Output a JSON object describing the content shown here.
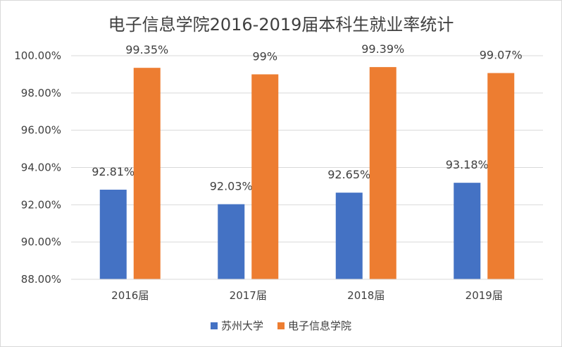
{
  "chart_data": {
    "type": "bar",
    "title": "电子信息学院2016-2019届本科生就业率统计",
    "categories": [
      "2016届",
      "2017届",
      "2018届",
      "2019届"
    ],
    "series": [
      {
        "name": "苏州大学",
        "values": [
          92.81,
          92.03,
          92.65,
          93.18
        ],
        "labels": [
          "92.81%",
          "92.03%",
          "92.65%",
          "93.18%"
        ],
        "color": "#4472C4"
      },
      {
        "name": "电子信息学院",
        "values": [
          99.35,
          99.0,
          99.39,
          99.07
        ],
        "labels": [
          "99.35%",
          "99%",
          "99.39%",
          "99.07%"
        ],
        "color": "#ED7D31"
      }
    ],
    "ylim": [
      88,
      100
    ],
    "yticks": [
      "88.00%",
      "90.00%",
      "92.00%",
      "94.00%",
      "96.00%",
      "98.00%",
      "100.00%"
    ],
    "grid": true,
    "legend": "bottom"
  }
}
